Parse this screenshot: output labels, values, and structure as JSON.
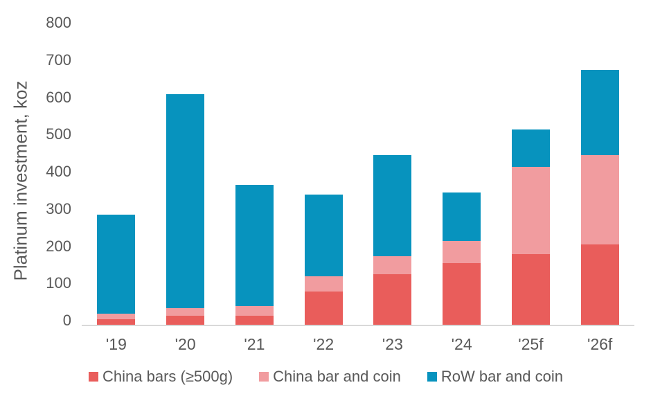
{
  "chart_data": {
    "type": "bar",
    "stacked": true,
    "title": "",
    "xlabel": "",
    "ylabel": "Platinum investment, koz",
    "ylim": [
      0,
      800
    ],
    "ytick_step": 100,
    "grid": false,
    "legend_position": "bottom",
    "categories": [
      "'19",
      "'20",
      "'21",
      "'22",
      "'23",
      "'24",
      "'25f",
      "'26f"
    ],
    "series": [
      {
        "name": "China bars (≥500g)",
        "color": "#e95d5b",
        "values": [
          15,
          25,
          25,
          90,
          135,
          165,
          190,
          215
        ]
      },
      {
        "name": "China bar and coin",
        "color": "#f19c9f",
        "values": [
          15,
          20,
          25,
          40,
          50,
          60,
          235,
          240
        ]
      },
      {
        "name": "RoW bar and coin",
        "color": "#0793be",
        "values": [
          265,
          575,
          325,
          220,
          270,
          130,
          100,
          230
        ]
      }
    ],
    "totals": [
      295,
      620,
      375,
      350,
      455,
      355,
      525,
      685
    ]
  },
  "colors": {
    "axis_line": "#d9d9d9",
    "text": "#595959",
    "background": "#ffffff"
  }
}
